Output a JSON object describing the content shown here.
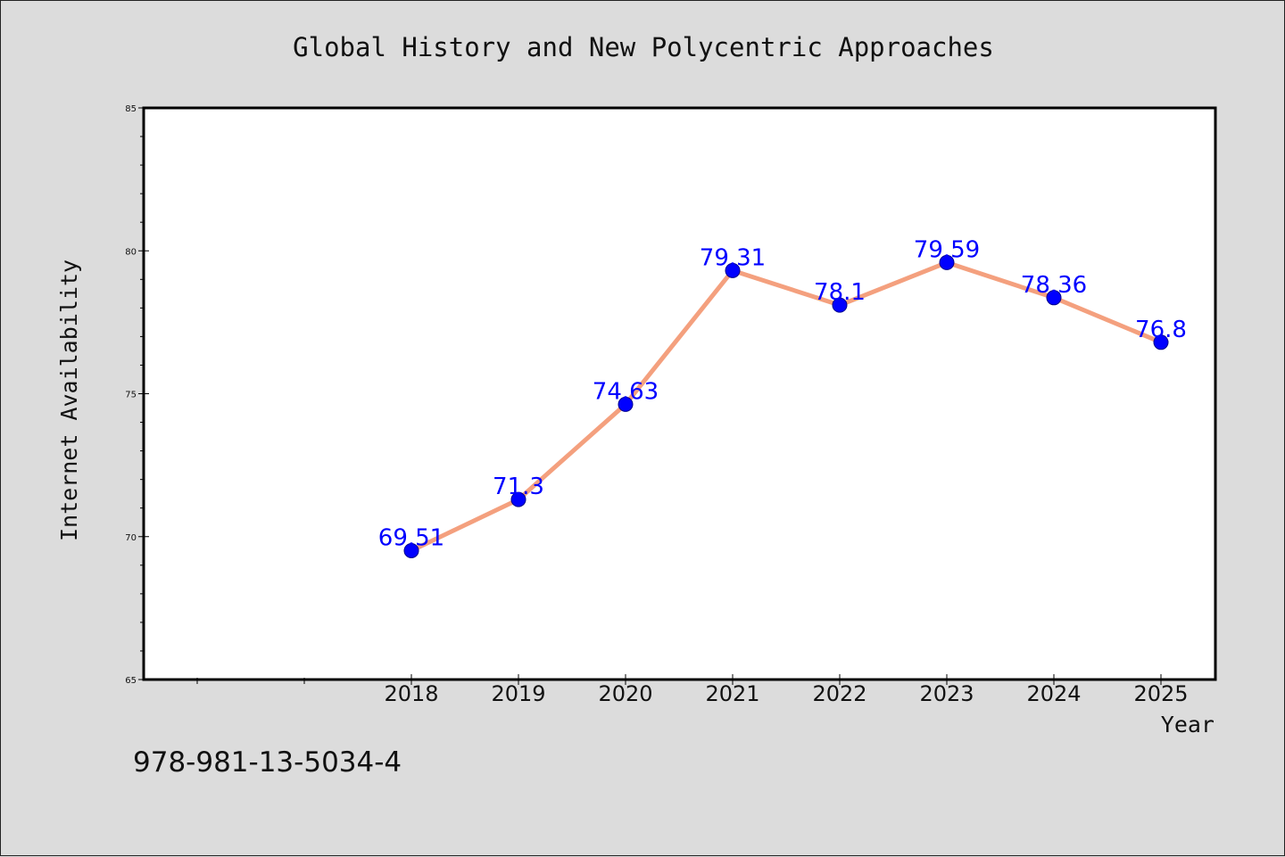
{
  "chart_data": {
    "type": "line",
    "title": "Global History and New Polycentric Approaches",
    "xlabel": "Year",
    "ylabel": "Internet Availability",
    "categories": [
      "2018",
      "2019",
      "2020",
      "2021",
      "2022",
      "2023",
      "2024",
      "2025"
    ],
    "series": [
      {
        "values": [
          69.51,
          71.3,
          74.63,
          79.31,
          78.1,
          79.59,
          78.36,
          76.8
        ],
        "labels": [
          "69.51",
          "71.3",
          "74.63",
          "79.31",
          "78.1",
          "79.59",
          "78.36",
          "76.8"
        ]
      }
    ],
    "ylim": [
      65,
      85
    ],
    "yticks": [
      "65",
      "70",
      "75",
      "80",
      "85"
    ],
    "grid": false,
    "line_color": "#f4a07e",
    "marker_color": "#0000ff",
    "label_color": "#0000ff",
    "background_color": "#dcdcdc",
    "plot_background_color": "#ffffff"
  },
  "footer": {
    "isbn": "978-981-13-5034-4"
  }
}
